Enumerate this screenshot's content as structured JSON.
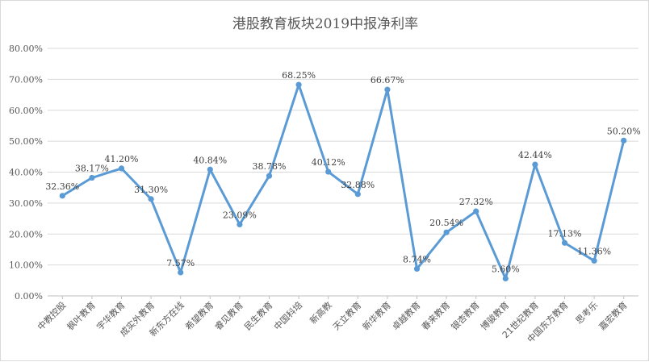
{
  "chart_data": {
    "type": "line",
    "title": "港股教育板块2019中报净利率",
    "xlabel": "",
    "ylabel": "",
    "categories": [
      "中教控股",
      "枫叶教育",
      "宇华教育",
      "成实外教育",
      "新东方在线",
      "希望教育",
      "睿见教育",
      "民生教育",
      "中国科培",
      "新高教",
      "天立教育",
      "新华教育",
      "卓越教育",
      "春来教育",
      "银杏教育",
      "博骏教育",
      "21世纪教育",
      "中国东方教育",
      "思考乐",
      "嘉宏教育"
    ],
    "series": [
      {
        "values": [
          32.36,
          38.17,
          41.2,
          31.3,
          7.57,
          40.84,
          23.09,
          38.78,
          68.25,
          40.12,
          32.88,
          66.67,
          8.74,
          20.54,
          27.32,
          5.6,
          42.44,
          17.13,
          11.36,
          50.2
        ]
      }
    ],
    "data_labels": [
      "32.36%",
      "38.17%",
      "41.20%",
      "31.30%",
      "7.57%",
      "40.84%",
      "23.09%",
      "38.78%",
      "68.25%",
      "40.12%",
      "32.88%",
      "66.67%",
      "8.74%",
      "20.54%",
      "27.32%",
      "5.60%",
      "42.44%",
      "17.13%",
      "11.36%",
      "50.20%"
    ],
    "y_ticks": [
      "0.00%",
      "10.00%",
      "20.00%",
      "30.00%",
      "40.00%",
      "50.00%",
      "60.00%",
      "70.00%",
      "80.00%"
    ],
    "ylim": [
      0,
      80
    ],
    "grid": true,
    "legend": "none",
    "line_color": "#5b9bd5"
  }
}
